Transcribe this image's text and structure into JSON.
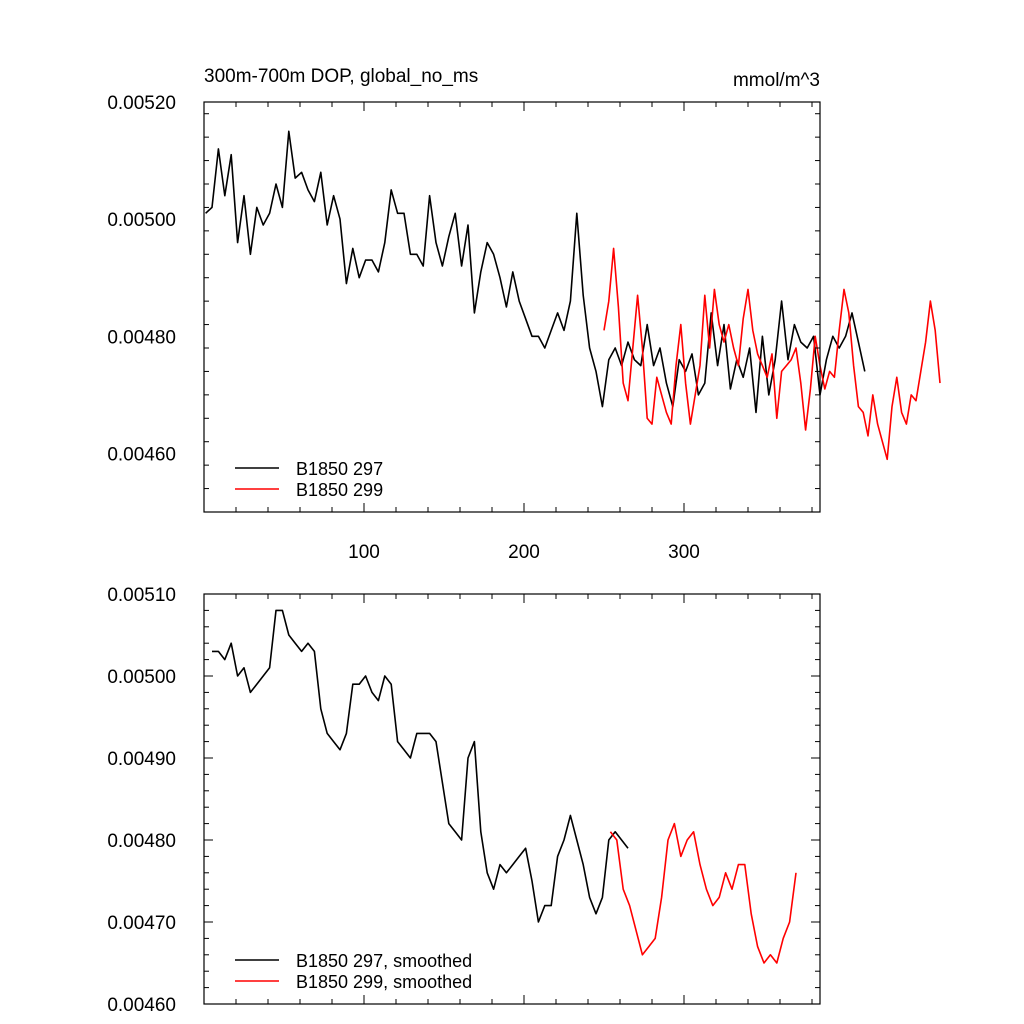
{
  "chart_data": [
    {
      "type": "line",
      "title": "300m-700m DOP, global_no_ms",
      "units": "mmol/m^3",
      "xlim": [
        0,
        385
      ],
      "ylim": [
        0.0045,
        0.0052
      ],
      "x_ticks": [
        100,
        200,
        300
      ],
      "y_ticks": [
        "0.00460",
        "0.00480",
        "0.00500",
        "0.00520"
      ],
      "y_tick_values": [
        0.0046,
        0.0048,
        0.005,
        0.0052
      ],
      "grid": false,
      "legend_position": "bottom-left",
      "series": [
        {
          "name": "B1850 297",
          "color": "#000000",
          "x_start": 1,
          "x_step": 4,
          "values": [
            0.00501,
            0.00502,
            0.00512,
            0.00504,
            0.00511,
            0.00496,
            0.00504,
            0.00494,
            0.00502,
            0.00499,
            0.00501,
            0.00506,
            0.00502,
            0.00515,
            0.00507,
            0.00508,
            0.00505,
            0.00503,
            0.00508,
            0.00499,
            0.00504,
            0.005,
            0.00489,
            0.00495,
            0.0049,
            0.00493,
            0.00493,
            0.00491,
            0.00496,
            0.00505,
            0.00501,
            0.00501,
            0.00494,
            0.00494,
            0.00492,
            0.00504,
            0.00496,
            0.00492,
            0.00497,
            0.00501,
            0.00492,
            0.00499,
            0.00484,
            0.00491,
            0.00496,
            0.00494,
            0.0049,
            0.00485,
            0.00491,
            0.00486,
            0.00483,
            0.0048,
            0.0048,
            0.00478,
            0.00481,
            0.00484,
            0.00481,
            0.00486,
            0.00501,
            0.00487,
            0.00478,
            0.00474,
            0.00468,
            0.00476,
            0.00478,
            0.00475,
            0.00479,
            0.00476,
            0.00475,
            0.00482,
            0.00475,
            0.00478,
            0.00472,
            0.00468,
            0.00476,
            0.00474,
            0.00477,
            0.0047,
            0.00472,
            0.00484,
            0.00475,
            0.00482,
            0.00471,
            0.00476,
            0.00473,
            0.00478,
            0.00467,
            0.0048,
            0.0047,
            0.00476,
            0.00486,
            0.00476,
            0.00482,
            0.00479,
            0.00478,
            0.0048,
            0.0047,
            0.00476,
            0.0048,
            0.00478,
            0.0048,
            0.00484,
            0.00479,
            0.00474
          ]
        },
        {
          "name": "B1850 299",
          "color": "#ff0000",
          "x_start": 250,
          "x_step": 3,
          "values": [
            0.00481,
            0.00486,
            0.00495,
            0.00485,
            0.00472,
            0.00469,
            0.00478,
            0.00487,
            0.00478,
            0.00466,
            0.00465,
            0.00473,
            0.0047,
            0.00467,
            0.00465,
            0.00475,
            0.00482,
            0.00472,
            0.00465,
            0.0047,
            0.00475,
            0.00487,
            0.00478,
            0.00488,
            0.00482,
            0.00479,
            0.00482,
            0.00478,
            0.00475,
            0.00483,
            0.00488,
            0.00481,
            0.00477,
            0.00475,
            0.00473,
            0.00477,
            0.00466,
            0.00474,
            0.00475,
            0.00476,
            0.00478,
            0.00472,
            0.00464,
            0.00471,
            0.0048,
            0.00475,
            0.00471,
            0.00474,
            0.00473,
            0.00481,
            0.00488,
            0.00484,
            0.00475,
            0.00468,
            0.00467,
            0.00463,
            0.0047,
            0.00465,
            0.00462,
            0.00459,
            0.00468,
            0.00473,
            0.00467,
            0.00465,
            0.0047,
            0.00469,
            0.00474,
            0.00479,
            0.00486,
            0.00481,
            0.00472
          ]
        }
      ]
    },
    {
      "type": "line",
      "xlim": [
        0,
        385
      ],
      "ylim": [
        0.0046,
        0.0051
      ],
      "y_ticks": [
        "0.00460",
        "0.00470",
        "0.00480",
        "0.00490",
        "0.00500",
        "0.00510"
      ],
      "y_tick_values": [
        0.0046,
        0.0047,
        0.0048,
        0.0049,
        0.005,
        0.0051
      ],
      "grid": false,
      "legend_position": "bottom-left",
      "series": [
        {
          "name": "B1850 297, smoothed",
          "color": "#000000",
          "x_start": 5,
          "x_step": 4,
          "values": [
            0.00503,
            0.00503,
            0.00502,
            0.00504,
            0.005,
            0.00501,
            0.00498,
            0.00499,
            0.005,
            0.00501,
            0.00508,
            0.00508,
            0.00505,
            0.00504,
            0.00503,
            0.00504,
            0.00503,
            0.00496,
            0.00493,
            0.00492,
            0.00491,
            0.00493,
            0.00499,
            0.00499,
            0.005,
            0.00498,
            0.00497,
            0.005,
            0.00499,
            0.00492,
            0.00491,
            0.0049,
            0.00493,
            0.00493,
            0.00493,
            0.00492,
            0.00487,
            0.00482,
            0.00481,
            0.0048,
            0.0049,
            0.00492,
            0.00481,
            0.00476,
            0.00474,
            0.00477,
            0.00476,
            0.00477,
            0.00478,
            0.00479,
            0.00475,
            0.0047,
            0.00472,
            0.00472,
            0.00478,
            0.0048,
            0.00483,
            0.0048,
            0.00477,
            0.00473,
            0.00471,
            0.00473,
            0.0048,
            0.00481,
            0.0048,
            0.00479
          ]
        },
        {
          "name": "B1850 299, smoothed",
          "color": "#ff0000",
          "x_start": 254,
          "x_step": 4,
          "values": [
            0.00481,
            0.0048,
            0.00474,
            0.00472,
            0.00469,
            0.00466,
            0.00467,
            0.00468,
            0.00473,
            0.0048,
            0.00482,
            0.00478,
            0.0048,
            0.00481,
            0.00477,
            0.00474,
            0.00472,
            0.00473,
            0.00476,
            0.00474,
            0.00477,
            0.00477,
            0.00471,
            0.00467,
            0.00465,
            0.00466,
            0.00465,
            0.00468,
            0.0047,
            0.00476
          ]
        }
      ]
    }
  ]
}
